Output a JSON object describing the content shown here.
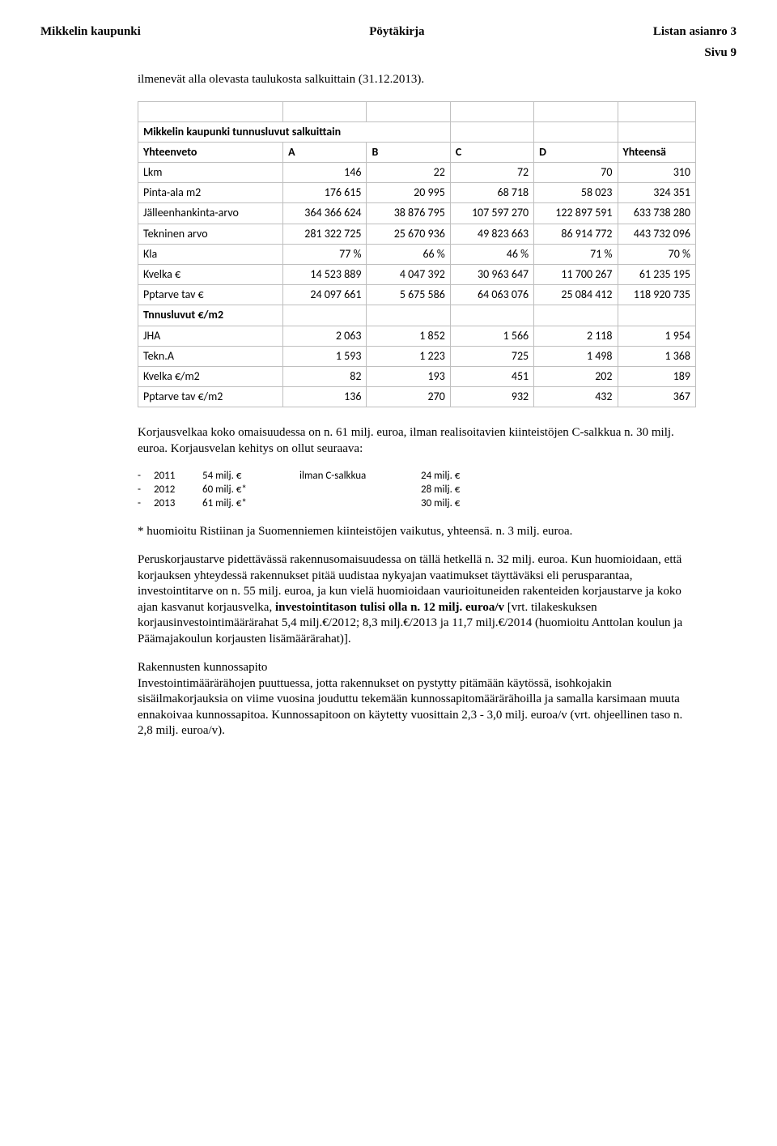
{
  "header": {
    "left": "Mikkelin kaupunki",
    "center": "Pöytäkirja",
    "right": "Listan asianro 3",
    "page": "Sivu 9"
  },
  "intro": "ilmenevät alla olevasta taulukosta salkuittain (31.12.2013).",
  "table": {
    "title": "Mikkelin kaupunki tunnusluvut salkuittain",
    "columns": [
      "Yhteenveto",
      "A",
      "B",
      "C",
      "D",
      "Yhteensä"
    ],
    "rows": [
      {
        "label": "Lkm",
        "vals": [
          "146",
          "22",
          "72",
          "70",
          "310"
        ]
      },
      {
        "label": "Pinta-ala m2",
        "vals": [
          "176 615",
          "20 995",
          "68 718",
          "58 023",
          "324 351"
        ]
      },
      {
        "label": "Jälleenhankinta-arvo",
        "vals": [
          "364 366 624",
          "38 876 795",
          "107 597 270",
          "122 897 591",
          "633 738 280"
        ]
      },
      {
        "label": "Tekninen arvo",
        "vals": [
          "281 322 725",
          "25 670 936",
          "49 823 663",
          "86 914 772",
          "443 732 096"
        ]
      },
      {
        "label": "Kla",
        "vals": [
          "77 %",
          "66 %",
          "46 %",
          "71 %",
          "70 %"
        ]
      },
      {
        "label": "Kvelka €",
        "vals": [
          "14 523 889",
          "4 047 392",
          "30 963 647",
          "11 700 267",
          "61 235 195"
        ]
      },
      {
        "label": "Pptarve tav €",
        "vals": [
          "24 097 661",
          "5 675 586",
          "64 063 076",
          "25 084 412",
          "118 920 735"
        ]
      }
    ],
    "section2_label": "Tnnusluvut €/m2",
    "rows2": [
      {
        "label": "JHA",
        "vals": [
          "2 063",
          "1 852",
          "1 566",
          "2 118",
          "1 954"
        ]
      },
      {
        "label": "Tekn.A",
        "vals": [
          "1 593",
          "1 223",
          "725",
          "1 498",
          "1 368"
        ]
      },
      {
        "label": "Kvelka €/m2",
        "vals": [
          "82",
          "193",
          "451",
          "202",
          "189"
        ]
      },
      {
        "label": "Pptarve tav €/m2",
        "vals": [
          "136",
          "270",
          "932",
          "432",
          "367"
        ]
      }
    ],
    "col_widths": [
      "26%",
      "15%",
      "15%",
      "15%",
      "15%",
      "14%"
    ]
  },
  "para1": "Korjausvelkaa koko omaisuudessa on n. 61 milj. euroa, ilman realisoitavien kiinteistöjen C-salkkua n. 30 milj. euroa. Korjausvelan kehitys on ollut seuraava:",
  "kehitys": {
    "rows": [
      {
        "dash": "-",
        "year": "2011",
        "val": "54 milj. €",
        "note": "ilman C-salkkua",
        "amt": "24 milj. €"
      },
      {
        "dash": "-",
        "year": "2012",
        "val": "60 milj. €*",
        "note": "",
        "amt": "28 milj. €"
      },
      {
        "dash": "-",
        "year": "2013",
        "val": "61 milj. €*",
        "note": "",
        "amt": "30 milj. €"
      }
    ]
  },
  "footnote": "* huomioitu Ristiinan ja Suomenniemen kiinteistöjen vaikutus, yhteensä. n. 3 milj. euroa.",
  "para2_pre": "Peruskorjaustarve pidettävässä rakennusomaisuudessa on tällä hetkellä n. 32 milj. euroa. Kun huomioidaan, että korjauksen yhteydessä rakennukset pitää uudistaa nykyajan vaatimukset täyttäväksi eli perusparantaa, investointitarve on n. 55 milj. euroa, ja kun vielä huomioidaan vaurioituneiden rakenteiden korjaustarve ja koko ajan kasvanut korjausvelka, ",
  "para2_bold": "investointitason tulisi olla n. 12 milj. euroa/v",
  "para2_post": " [vrt. tilakeskuksen korjausinvestointimäärärahat 5,4 milj.€/2012; 8,3 milj.€/2013 ja 11,7 milj.€/2014 (huomioitu Anttolan koulun ja Päämajakoulun korjausten lisämäärärahat)].",
  "para3_title": "Rakennusten kunnossapito",
  "para3_body": "Investointimäärärähojen puuttuessa, jotta rakennukset on pystytty pitämään käytössä, isohkojakin sisäilmakorjauksia on viime vuosina jouduttu tekemään kunnossapitomäärärähoilla ja samalla karsimaan muuta ennakoivaa kunnossapitoa. Kunnossapitoon on käytetty vuosittain 2,3 - 3,0 milj. euroa/v (vrt. ohjeellinen taso n. 2,8 milj. euroa/v)."
}
